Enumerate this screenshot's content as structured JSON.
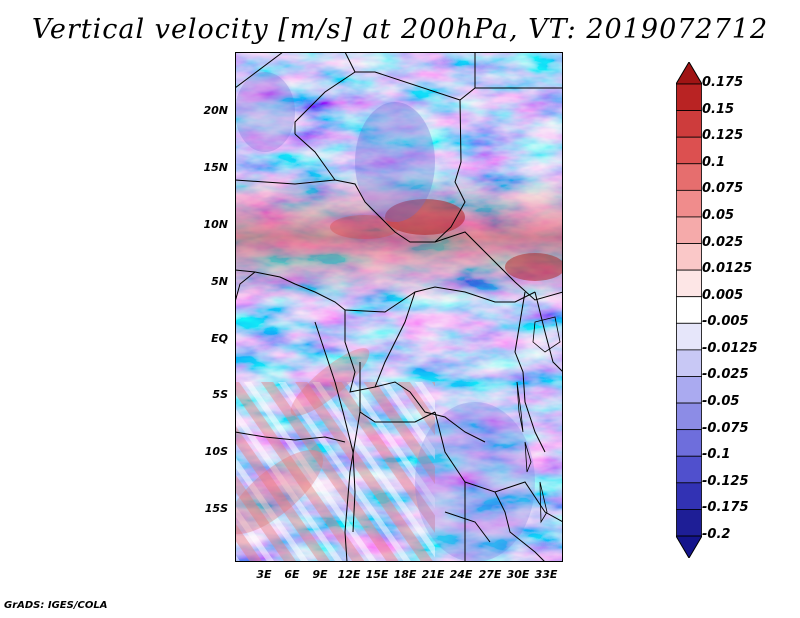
{
  "title": "Vertical velocity [m/s] at 200hPa, VT: 2019072712",
  "footer": "GrADS: IGES/COLA",
  "map": {
    "lon_ticks": [
      "3E",
      "6E",
      "9E",
      "12E",
      "15E",
      "18E",
      "21E",
      "24E",
      "27E",
      "30E",
      "33E"
    ],
    "lat_ticks": [
      "20N",
      "15N",
      "10N",
      "5N",
      "EQ",
      "5S",
      "10S",
      "15S"
    ],
    "lon_range": [
      0,
      35
    ],
    "lat_range": [
      -20,
      25
    ],
    "lon_values": [
      3,
      6,
      9,
      12,
      15,
      18,
      21,
      24,
      27,
      30,
      33
    ],
    "lat_values": [
      20,
      15,
      10,
      5,
      0,
      -5,
      -10,
      -15
    ]
  },
  "colorbar": {
    "labels": [
      "0.175",
      "0.15",
      "0.125",
      "0.1",
      "0.075",
      "0.05",
      "0.025",
      "0.0125",
      "0.005",
      "-0.005",
      "-0.0125",
      "-0.025",
      "-0.05",
      "-0.075",
      "-0.1",
      "-0.125",
      "-0.175",
      "-0.2"
    ],
    "colors": [
      "#a01414",
      "#b92323",
      "#cd3c3c",
      "#dc5050",
      "#e66e6e",
      "#f08c8c",
      "#f5aaaa",
      "#fac8c8",
      "#fde6e6",
      "#ffffff",
      "#e6e6fa",
      "#c8c8f5",
      "#aaaaf0",
      "#8c8ce6",
      "#6e6edc",
      "#5050cd",
      "#3232b4",
      "#1e1e96",
      "#14148c"
    ]
  }
}
